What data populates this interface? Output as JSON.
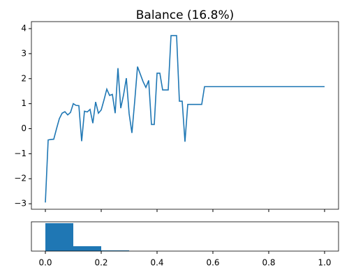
{
  "chart_data": [
    {
      "type": "line",
      "title": "Balance (16.8%)",
      "color": "#1f77b4",
      "x": [
        0,
        0.01,
        0.02,
        0.03,
        0.04,
        0.05,
        0.06,
        0.07,
        0.08,
        0.09,
        0.1,
        0.11,
        0.12,
        0.13,
        0.14,
        0.15,
        0.16,
        0.17,
        0.18,
        0.19,
        0.2,
        0.21,
        0.22,
        0.23,
        0.24,
        0.25,
        0.26,
        0.27,
        0.28,
        0.29,
        0.3,
        0.31,
        0.32,
        0.33,
        0.34,
        0.35,
        0.36,
        0.37,
        0.38,
        0.39,
        0.4,
        0.41,
        0.42,
        0.43,
        0.44,
        0.45,
        0.46,
        0.47,
        0.48,
        0.49,
        0.5,
        0.51,
        0.52,
        0.53,
        0.54,
        0.55,
        0.56,
        0.57,
        0.58,
        0.59,
        0.6,
        0.61,
        0.62,
        0.63,
        0.64,
        0.65,
        0.66,
        0.67,
        0.68,
        0.69,
        0.7,
        0.71,
        0.72,
        0.73,
        0.74,
        0.75,
        0.76,
        0.77,
        0.78,
        0.79,
        0.8,
        0.81,
        0.82,
        0.83,
        0.84,
        0.85,
        0.86,
        0.87,
        0.88,
        0.89,
        0.9,
        0.91,
        0.92,
        0.93,
        0.94,
        0.95,
        0.96,
        0.97,
        0.98,
        0.99,
        1.0
      ],
      "values": [
        -2.95,
        -0.45,
        -0.43,
        -0.42,
        0.0,
        0.4,
        0.62,
        0.68,
        0.55,
        0.65,
        1.0,
        0.93,
        0.92,
        -0.5,
        0.7,
        0.67,
        0.77,
        0.22,
        1.07,
        0.62,
        0.75,
        1.15,
        1.58,
        1.33,
        1.37,
        0.62,
        2.42,
        0.82,
        1.35,
        2.02,
        0.6,
        -0.17,
        1.1,
        2.48,
        2.18,
        1.88,
        1.65,
        1.93,
        0.17,
        0.17,
        2.22,
        2.22,
        1.55,
        1.55,
        1.55,
        3.72,
        3.72,
        3.72,
        1.1,
        1.1,
        -0.52,
        0.97,
        0.97,
        0.97,
        0.97,
        0.97,
        0.97,
        1.68,
        1.68,
        1.68,
        1.68,
        1.68,
        1.68,
        1.68,
        1.68,
        1.68,
        1.68,
        1.68,
        1.68,
        1.68,
        1.68,
        1.68,
        1.68,
        1.68,
        1.68,
        1.68,
        1.68,
        1.68,
        1.68,
        1.68,
        1.68,
        1.68,
        1.68,
        1.68,
        1.68,
        1.68,
        1.68,
        1.68,
        1.68,
        1.68,
        1.68,
        1.68,
        1.68,
        1.68,
        1.68,
        1.68,
        1.68,
        1.68,
        1.68,
        1.68,
        1.68
      ],
      "xlim": [
        -0.05,
        1.05
      ],
      "ylim": [
        -3.22,
        4.28
      ],
      "xticks": [
        0,
        0.2,
        0.4,
        0.6,
        0.8,
        1
      ],
      "yticks": [
        {
          "value": -3,
          "label": "−3"
        },
        {
          "value": -2,
          "label": "−2"
        },
        {
          "value": -1,
          "label": "−1"
        },
        0,
        1,
        2,
        3,
        4
      ]
    },
    {
      "type": "histogram",
      "color": "#1f77b4",
      "bins": [
        0,
        0.1,
        0.2,
        0.3,
        0.4,
        0.5,
        0.6,
        0.7,
        0.8,
        0.9,
        1.0
      ],
      "values": [
        40,
        7,
        1,
        0,
        0,
        0,
        0,
        0,
        0,
        0
      ],
      "xlim": [
        -0.05,
        1.05
      ],
      "ylim": [
        0,
        42
      ],
      "xticks": [
        {
          "value": 0,
          "label": "0.0"
        },
        0.2,
        0.4,
        0.6,
        0.8,
        {
          "value": 1,
          "label": "1.0"
        }
      ]
    }
  ]
}
